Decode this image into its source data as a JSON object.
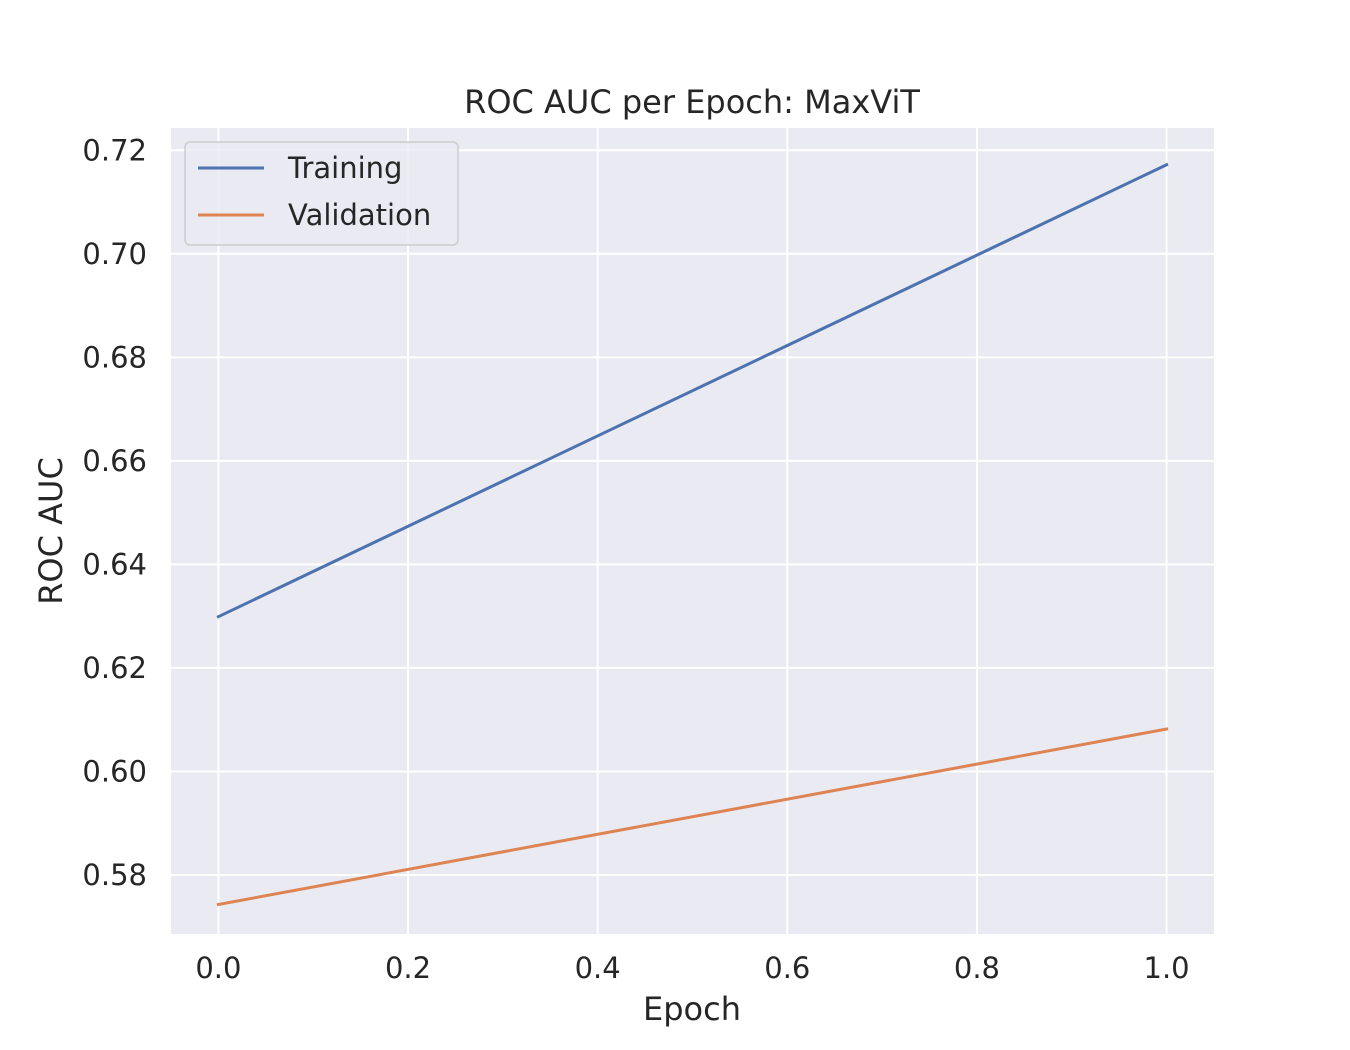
{
  "chart_data": {
    "type": "line",
    "title": "ROC AUC per Epoch: MaxViT",
    "xlabel": "Epoch",
    "ylabel": "ROC AUC",
    "x": [
      0.0,
      1.0
    ],
    "xlim": [
      -0.05,
      1.05
    ],
    "ylim": [
      0.5686,
      0.7243
    ],
    "xticks": [
      0.0,
      0.2,
      0.4,
      0.6,
      0.8,
      1.0
    ],
    "xtick_labels": [
      "0.0",
      "0.2",
      "0.4",
      "0.6",
      "0.8",
      "1.0"
    ],
    "yticks": [
      0.58,
      0.6,
      0.62,
      0.64,
      0.66,
      0.68,
      0.7,
      0.72
    ],
    "ytick_labels": [
      "0.58",
      "0.60",
      "0.62",
      "0.64",
      "0.66",
      "0.68",
      "0.70",
      "0.72"
    ],
    "grid": true,
    "legend_position": "top-left",
    "background": "#eaeaf2",
    "series": [
      {
        "name": "Training",
        "values": [
          0.6299,
          0.7172
        ],
        "color": "#4c72b0"
      },
      {
        "name": "Validation",
        "values": [
          0.5743,
          0.6082
        ],
        "color": "#dd8452"
      }
    ]
  }
}
